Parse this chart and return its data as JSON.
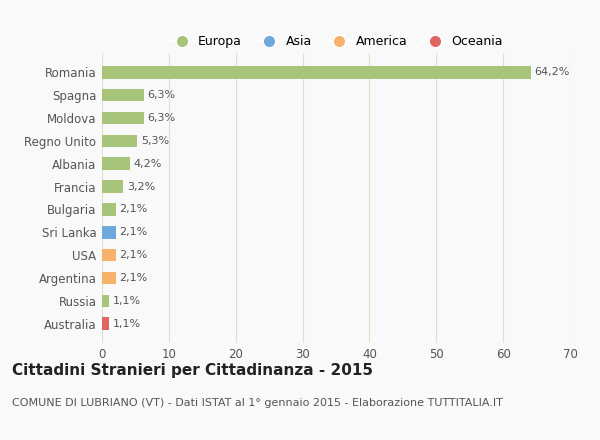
{
  "categories": [
    "Romania",
    "Spagna",
    "Moldova",
    "Regno Unito",
    "Albania",
    "Francia",
    "Bulgaria",
    "Sri Lanka",
    "USA",
    "Argentina",
    "Russia",
    "Australia"
  ],
  "values": [
    64.2,
    6.3,
    6.3,
    5.3,
    4.2,
    3.2,
    2.1,
    2.1,
    2.1,
    2.1,
    1.1,
    1.1
  ],
  "labels": [
    "64,2%",
    "6,3%",
    "6,3%",
    "5,3%",
    "4,2%",
    "3,2%",
    "2,1%",
    "2,1%",
    "2,1%",
    "2,1%",
    "1,1%",
    "1,1%"
  ],
  "colors": [
    "#a8c47a",
    "#a8c47a",
    "#a8c47a",
    "#a8c47a",
    "#a8c47a",
    "#a8c47a",
    "#a8c47a",
    "#6fa8dc",
    "#f6b26b",
    "#f6b26b",
    "#a8c47a",
    "#e06666"
  ],
  "legend_labels": [
    "Europa",
    "Asia",
    "America",
    "Oceania"
  ],
  "legend_colors": [
    "#a8c47a",
    "#6fa8dc",
    "#f6b26b",
    "#e06666"
  ],
  "xlim": [
    0,
    70
  ],
  "xticks": [
    0,
    10,
    20,
    30,
    40,
    50,
    60,
    70
  ],
  "title": "Cittadini Stranieri per Cittadinanza - 2015",
  "subtitle": "COMUNE DI LUBRIANO (VT) - Dati ISTAT al 1° gennaio 2015 - Elaborazione TUTTITALIA.IT",
  "bg_color": "#f9f9f9",
  "grid_color": "#d8e4c8",
  "bar_height": 0.55,
  "title_fontsize": 11,
  "subtitle_fontsize": 8,
  "label_fontsize": 8,
  "tick_fontsize": 8.5
}
